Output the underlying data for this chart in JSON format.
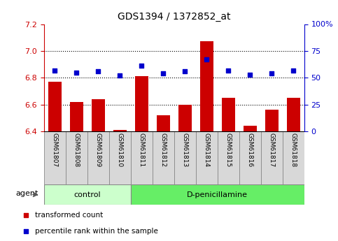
{
  "title": "GDS1394 / 1372852_at",
  "samples": [
    "GSM61807",
    "GSM61808",
    "GSM61809",
    "GSM61810",
    "GSM61811",
    "GSM61812",
    "GSM61813",
    "GSM61814",
    "GSM61815",
    "GSM61816",
    "GSM61817",
    "GSM61818"
  ],
  "transformed_count": [
    6.77,
    6.62,
    6.64,
    6.41,
    6.81,
    6.52,
    6.6,
    7.07,
    6.65,
    6.44,
    6.56,
    6.65
  ],
  "percentile_rank": [
    57,
    55,
    56,
    52,
    61,
    54,
    56,
    67,
    57,
    53,
    54,
    57
  ],
  "control_count": 4,
  "bar_color": "#cc0000",
  "dot_color": "#0000cc",
  "ylim_left": [
    6.4,
    7.2
  ],
  "ylim_right": [
    0,
    100
  ],
  "yticks_left": [
    6.4,
    6.6,
    6.8,
    7.0,
    7.2
  ],
  "yticks_right": [
    0,
    25,
    50,
    75,
    100
  ],
  "hlines": [
    6.6,
    6.8,
    7.0
  ],
  "group_labels": [
    "control",
    "D-penicillamine"
  ],
  "group_colors_light": "#ccffcc",
  "group_colors_dark": "#66ee66",
  "agent_label": "agent",
  "legend_items": [
    {
      "label": "transformed count",
      "color": "#cc0000"
    },
    {
      "label": "percentile rank within the sample",
      "color": "#0000cc"
    }
  ],
  "bar_bottom": 6.4,
  "left_tick_color": "#cc0000",
  "right_tick_color": "#0000cc"
}
